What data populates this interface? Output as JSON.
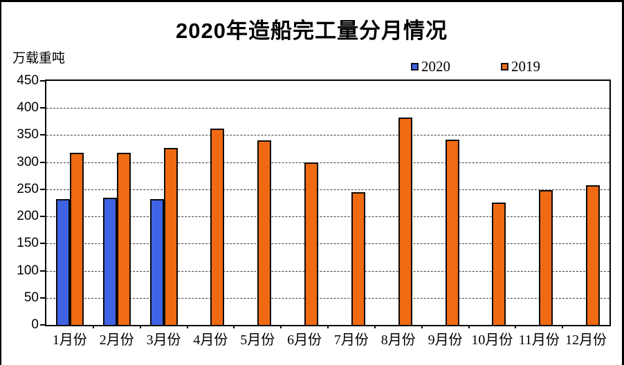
{
  "page": {
    "background": "#ffffff",
    "frame_border_color": "#000000"
  },
  "chart_data": {
    "type": "bar",
    "title": "2020年造船完工量分月情况",
    "ylabel": "万载重吨",
    "xlabel": "",
    "categories": [
      "1月份",
      "2月份",
      "3月份",
      "4月份",
      "5月份",
      "6月份",
      "7月份",
      "8月份",
      "9月份",
      "10月份",
      "11月份",
      "12月份"
    ],
    "series": [
      {
        "name": "2020",
        "color": "#3F63E4",
        "values": [
          232,
          234,
          232,
          null,
          null,
          null,
          null,
          null,
          null,
          null,
          null,
          null
        ]
      },
      {
        "name": "2019",
        "color": "#EF6A12",
        "values": [
          317,
          318,
          326,
          362,
          341,
          299,
          245,
          382,
          342,
          226,
          249,
          257
        ]
      }
    ],
    "ylim": [
      0,
      450
    ],
    "yticks": [
      450,
      400,
      350,
      300,
      250,
      200,
      150,
      100,
      50,
      0
    ],
    "grid": true,
    "gridline_style": "dashed",
    "bar_border_color": "#0d0a07",
    "legend_position": "top-right"
  }
}
